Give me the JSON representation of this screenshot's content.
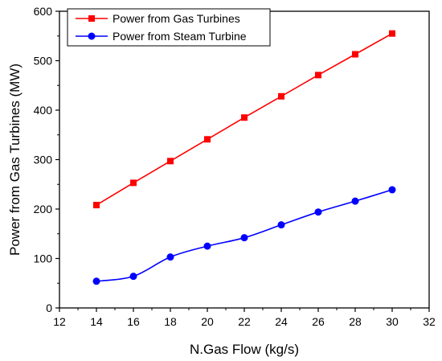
{
  "chart_data": {
    "type": "line",
    "title": "",
    "xlabel": "N.Gas Flow (kg/s)",
    "ylabel": "Power from Gas Turbines (MW)",
    "xlim": [
      12,
      32
    ],
    "ylim": [
      0,
      600
    ],
    "xticks": [
      12,
      14,
      16,
      18,
      20,
      22,
      24,
      26,
      28,
      30,
      32
    ],
    "yticks": [
      0,
      100,
      200,
      300,
      400,
      500,
      600
    ],
    "grid": false,
    "legend_position": "top-left",
    "x": [
      14,
      16,
      18,
      20,
      22,
      24,
      26,
      28,
      30
    ],
    "series": [
      {
        "name": "Power from Gas Turbines",
        "color": "#ff0000",
        "marker": "square",
        "smooth": false,
        "values": [
          208,
          253,
          297,
          341,
          385,
          428,
          471,
          513,
          555
        ]
      },
      {
        "name": "Power from Steam Turbine",
        "color": "#0000ff",
        "marker": "circle",
        "smooth": true,
        "values": [
          54,
          64,
          103,
          125,
          142,
          168,
          194,
          216,
          239
        ]
      }
    ]
  }
}
